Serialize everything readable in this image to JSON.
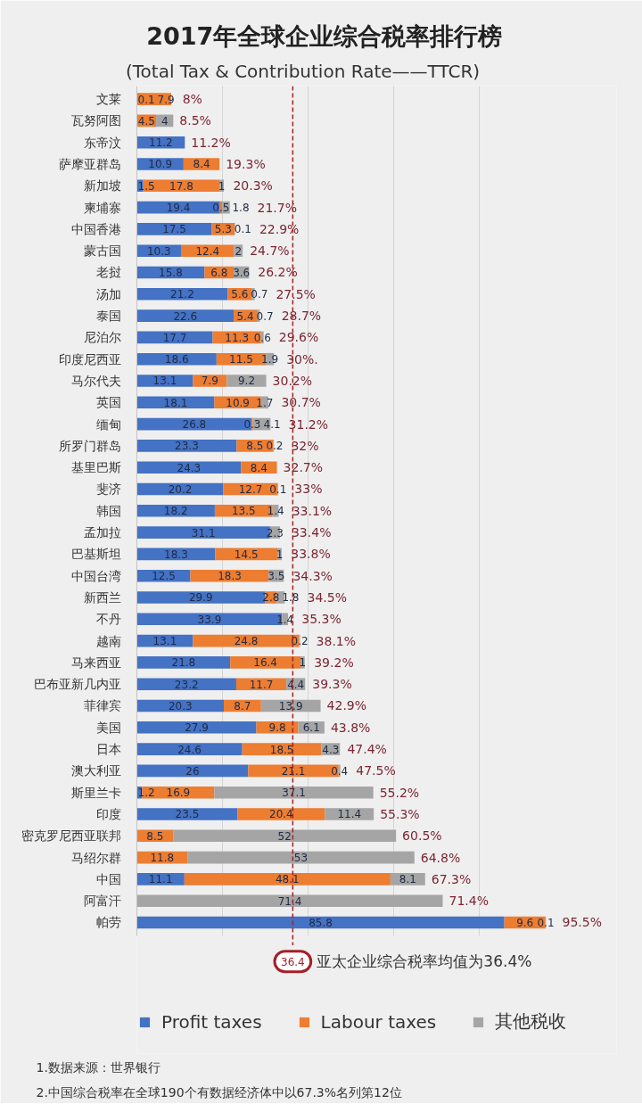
{
  "chart_data": {
    "type": "bar",
    "orientation": "horizontal",
    "stacked": true,
    "title": "2017年全球企业综合税率排行榜",
    "subtitle": "(Total Tax & Contribution Rate——TTCR)",
    "categories": [
      "文莱",
      "瓦努阿图",
      "东帝汶",
      "萨摩亚群岛",
      "新加坡",
      "柬埔寨",
      "中国香港",
      "蒙古国",
      "老挝",
      "汤加",
      "泰国",
      "尼泊尔",
      "印度尼西亚",
      "马尔代夫",
      "英国",
      "缅甸",
      "所罗门群岛",
      "基里巴斯",
      "斐济",
      "韩国",
      "孟加拉",
      "巴基斯坦",
      "中国台湾",
      "新西兰",
      "不丹",
      "越南",
      "马来西亚",
      "巴布亚新几内亚",
      "菲律宾",
      "美国",
      "日本",
      "澳大利亚",
      "斯里兰卡",
      "印度",
      "密克罗尼西亚联邦",
      "马绍尔群",
      "中国",
      "阿富汗",
      "帕劳"
    ],
    "series": [
      {
        "name": "Profit taxes",
        "color": "#4472c4",
        "values": [
          0.1,
          null,
          11.2,
          10.9,
          1.5,
          19.4,
          17.5,
          10.3,
          15.8,
          21.2,
          22.6,
          17.7,
          18.6,
          13.1,
          18.1,
          26.8,
          23.3,
          24.3,
          20.2,
          18.2,
          31.1,
          18.3,
          12.5,
          29.9,
          33.9,
          13.1,
          21.8,
          23.2,
          20.3,
          27.9,
          24.6,
          26,
          1.2,
          23.5,
          null,
          null,
          11.1,
          null,
          85.8
        ]
      },
      {
        "name": "Labour taxes",
        "color": "#ed7d31",
        "values": [
          7.9,
          4.5,
          null,
          8.4,
          17.8,
          0.5,
          5.3,
          12.4,
          6.8,
          5.6,
          5.4,
          11.3,
          11.5,
          7.9,
          10.9,
          0.3,
          8.5,
          8.4,
          12.7,
          13.5,
          null,
          14.5,
          18.3,
          2.8,
          null,
          24.8,
          16.4,
          11.7,
          8.7,
          9.8,
          18.5,
          21.1,
          16.9,
          20.4,
          8.5,
          11.8,
          48.1,
          null,
          9.6
        ]
      },
      {
        "name": "其他税收",
        "color": "#a5a5a5",
        "values": [
          null,
          4,
          null,
          null,
          1,
          1.8,
          0.1,
          2,
          3.6,
          0.7,
          0.7,
          0.6,
          1.9,
          9.2,
          1.7,
          4.1,
          0.2,
          null,
          0.1,
          1.4,
          2.3,
          1,
          3.5,
          1.8,
          1.4,
          0.2,
          1,
          4.4,
          13.9,
          6.1,
          4.3,
          0.4,
          37.1,
          11.4,
          52,
          53,
          8.1,
          71.4,
          0.1
        ]
      }
    ],
    "data_labels": true,
    "totals": [
      "8%",
      "8.5%",
      "11.2%",
      "19.3%",
      "20.3%",
      "21.7%",
      "22.9%",
      "24.7%",
      "26.2%",
      "27.5%",
      "28.7%",
      "29.6%",
      "30%.",
      "30.2%",
      "30.7%",
      "31.2%",
      "32%",
      "32.7%",
      "33%",
      "33.1%",
      "33.4%",
      "33.8%",
      "34.3%",
      "34.5%",
      "35.3%",
      "38.1%",
      "39.2%",
      "39.3%",
      "42.9%",
      "43.8%",
      "47.4%",
      "47.5%",
      "55.2%",
      "55.3%",
      "60.5%",
      "64.8%",
      "67.3%",
      "71.4%",
      "95.5%"
    ],
    "xlim": [
      0,
      112
    ],
    "xticks": [
      {
        "value": 0,
        "label": null
      },
      {
        "value": 20,
        "label": null
      },
      {
        "value": 40,
        "label": null
      },
      {
        "value": 60,
        "label": null
      },
      {
        "value": 80,
        "label": null
      }
    ],
    "tick_labels": "y",
    "grid": "x",
    "legend": "bottom",
    "ref_lines": [
      {
        "axis": "x",
        "value": 36.4,
        "label": "36.4",
        "color": "#a3202a",
        "line_style": "dashed"
      }
    ],
    "annotations": [
      "亚太企业综合税率均值为36.4%",
      "1.数据来源：世界银行",
      "2.中国综合税率在全球190个有数据经济体中以67.3%名列第12位"
    ]
  }
}
